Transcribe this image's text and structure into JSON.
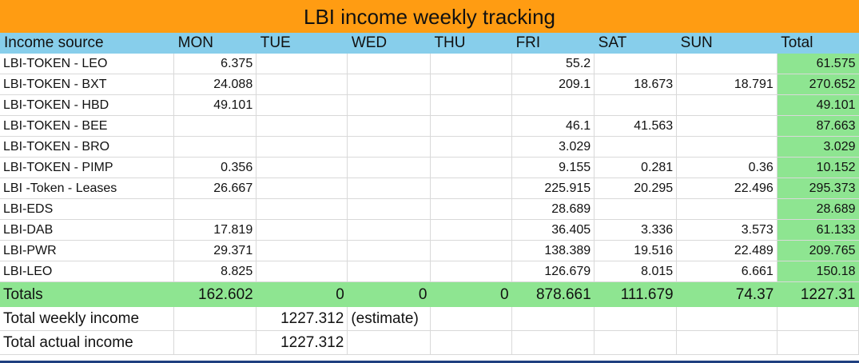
{
  "title": "LBI income weekly tracking",
  "header": [
    "Income source",
    "MON",
    "TUE",
    "WED",
    "THU",
    "FRI",
    "SAT",
    "SUN",
    "Total"
  ],
  "rows": [
    {
      "label": "LBI-TOKEN - LEO",
      "mon": "6.375",
      "tue": "",
      "wed": "",
      "thu": "",
      "fri": "55.2",
      "sat": "",
      "sun": "",
      "total": "61.575"
    },
    {
      "label": "LBI-TOKEN - BXT",
      "mon": "24.088",
      "tue": "",
      "wed": "",
      "thu": "",
      "fri": "209.1",
      "sat": "18.673",
      "sun": "18.791",
      "total": "270.652"
    },
    {
      "label": "LBI-TOKEN - HBD",
      "mon": "49.101",
      "tue": "",
      "wed": "",
      "thu": "",
      "fri": "",
      "sat": "",
      "sun": "",
      "total": "49.101"
    },
    {
      "label": "LBI-TOKEN - BEE",
      "mon": "",
      "tue": "",
      "wed": "",
      "thu": "",
      "fri": "46.1",
      "sat": "41.563",
      "sun": "",
      "total": "87.663"
    },
    {
      "label": "LBI-TOKEN - BRO",
      "mon": "",
      "tue": "",
      "wed": "",
      "thu": "",
      "fri": "3.029",
      "sat": "",
      "sun": "",
      "total": "3.029"
    },
    {
      "label": "LBI-TOKEN - PIMP",
      "mon": "0.356",
      "tue": "",
      "wed": "",
      "thu": "",
      "fri": "9.155",
      "sat": "0.281",
      "sun": "0.36",
      "total": "10.152"
    },
    {
      "label": "LBI -Token - Leases",
      "mon": "26.667",
      "tue": "",
      "wed": "",
      "thu": "",
      "fri": "225.915",
      "sat": "20.295",
      "sun": "22.496",
      "total": "295.373"
    },
    {
      "label": "LBI-EDS",
      "mon": "",
      "tue": "",
      "wed": "",
      "thu": "",
      "fri": "28.689",
      "sat": "",
      "sun": "",
      "total": "28.689"
    },
    {
      "label": "LBI-DAB",
      "mon": "17.819",
      "tue": "",
      "wed": "",
      "thu": "",
      "fri": "36.405",
      "sat": "3.336",
      "sun": "3.573",
      "total": "61.133"
    },
    {
      "label": "LBI-PWR",
      "mon": "29.371",
      "tue": "",
      "wed": "",
      "thu": "",
      "fri": "138.389",
      "sat": "19.516",
      "sun": "22.489",
      "total": "209.765"
    },
    {
      "label": "LBI-LEO",
      "mon": "8.825",
      "tue": "",
      "wed": "",
      "thu": "",
      "fri": "126.679",
      "sat": "8.015",
      "sun": "6.661",
      "total": "150.18"
    }
  ],
  "totals": {
    "label": "Totals",
    "mon": "162.602",
    "tue": "0",
    "wed": "0",
    "thu": "0",
    "fri": "878.661",
    "sat": "111.679",
    "sun": "74.37",
    "total": "1227.31"
  },
  "weekly_income": {
    "label": "Total weekly income",
    "value": "1227.312",
    "note": "(estimate)"
  },
  "actual_income": {
    "label": "Total actual income",
    "value": "1227.312"
  },
  "colors": {
    "title_bg": "#ff9c12",
    "header_bg": "#87ceeb",
    "total_bg": "#8ee591"
  }
}
